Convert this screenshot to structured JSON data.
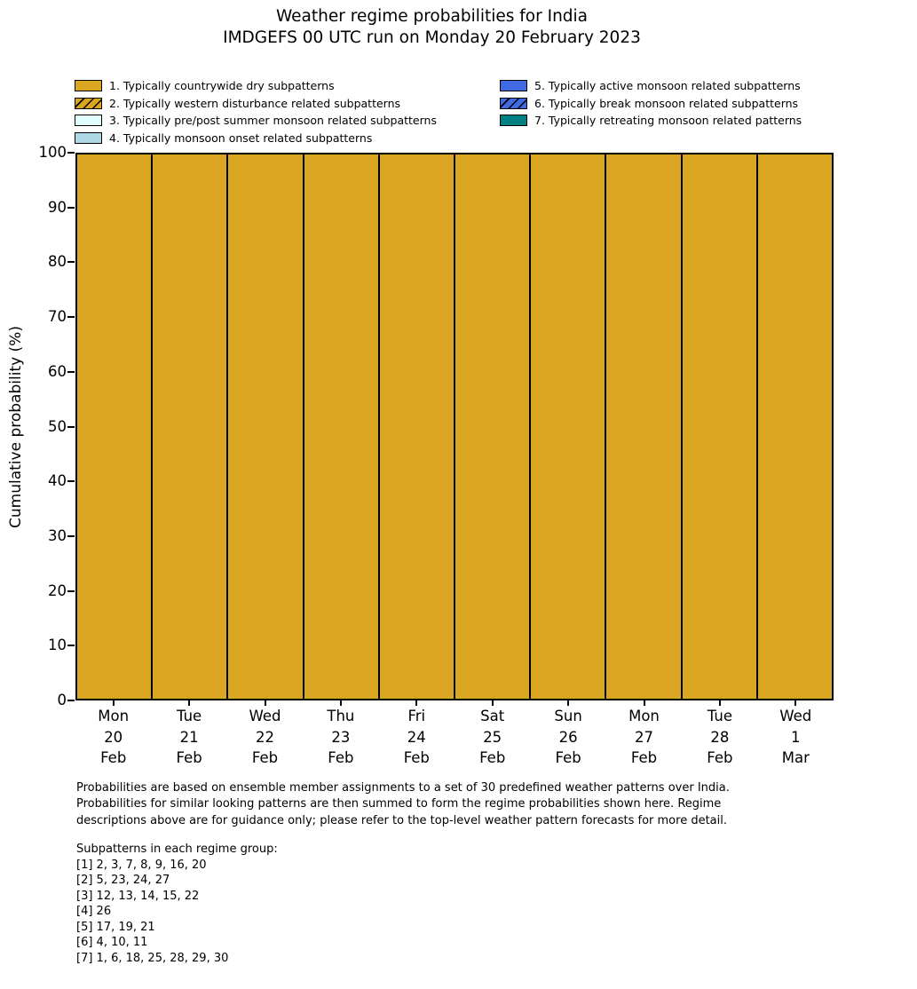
{
  "title": {
    "line1": "Weather regime probabilities for India",
    "line2": "IMDGEFS 00 UTC run on Monday 20 February 2023"
  },
  "ylabel": "Cumulative probability (%)",
  "colors": {
    "regime_dry": "#daa520",
    "regime_western_disturbance": "#daa520",
    "regime_prepost_monsoon": "#e0ffff",
    "regime_monsoon_onset": "#add8e6",
    "regime_active_monsoon": "#4169e1",
    "regime_break_monsoon": "#4169e1",
    "regime_retreating_monsoon": "#008080",
    "bar_edge": "#000000",
    "text": "#000000",
    "background": "#ffffff"
  },
  "legend": {
    "left_column": [
      {
        "label": "1. Typically countrywide dry subpatterns",
        "color": "#daa520",
        "hatch": false
      },
      {
        "label": "2. Typically western disturbance related subpatterns",
        "color": "#daa520",
        "hatch": true
      },
      {
        "label": "3. Typically pre/post summer monsoon related subpatterns",
        "color": "#e0ffff",
        "hatch": false
      },
      {
        "label": "4. Typically monsoon onset related subpatterns",
        "color": "#add8e6",
        "hatch": false
      }
    ],
    "right_column": [
      {
        "label": "5. Typically active monsoon related subpatterns",
        "color": "#4169e1",
        "hatch": false
      },
      {
        "label": "6. Typically break monsoon related subpatterns",
        "color": "#4169e1",
        "hatch": true
      },
      {
        "label": "7. Typically retreating monsoon related patterns",
        "color": "#008080",
        "hatch": false
      }
    ]
  },
  "regime_colors": [
    "#daa520",
    "#daa520",
    "#e0ffff",
    "#add8e6",
    "#4169e1",
    "#4169e1",
    "#008080"
  ],
  "regime_hatch": [
    false,
    true,
    false,
    false,
    false,
    true,
    false
  ],
  "xticks": [
    {
      "day": "Mon",
      "date": "20",
      "month": "Feb"
    },
    {
      "day": "Tue",
      "date": "21",
      "month": "Feb"
    },
    {
      "day": "Wed",
      "date": "22",
      "month": "Feb"
    },
    {
      "day": "Thu",
      "date": "23",
      "month": "Feb"
    },
    {
      "day": "Fri",
      "date": "24",
      "month": "Feb"
    },
    {
      "day": "Sat",
      "date": "25",
      "month": "Feb"
    },
    {
      "day": "Sun",
      "date": "26",
      "month": "Feb"
    },
    {
      "day": "Mon",
      "date": "27",
      "month": "Feb"
    },
    {
      "day": "Tue",
      "date": "28",
      "month": "Feb"
    },
    {
      "day": "Wed",
      "date": "1",
      "month": "Mar"
    }
  ],
  "footer_lines": [
    "Probabilities are based on ensemble member assignments to a set of 30 predefined weather patterns over India.",
    "Probabilities for similar looking patterns are then summed to form the regime probabilities shown here. Regime",
    "descriptions above are for guidance only; please refer to the top-level weather pattern forecasts for more detail."
  ],
  "subpatterns": {
    "heading": "Subpatterns in each regime group:",
    "lines": [
      "[1] 2, 3, 7, 8, 9, 16, 20",
      "[2] 5, 23, 24, 27",
      "[3] 12, 13, 14, 15, 22",
      "[4] 26",
      "[5] 17, 19, 21",
      "[6] 4, 10, 11",
      "[7] 1, 6, 18, 25, 28, 29, 30"
    ]
  },
  "chart_data": {
    "type": "bar",
    "stacked": true,
    "title": "Weather regime probabilities for India",
    "subtitle": "IMDGEFS 00 UTC run on Monday 20 February 2023",
    "xlabel": "",
    "ylabel": "Cumulative probability (%)",
    "ylim": [
      0,
      100
    ],
    "yticks": [
      0,
      10,
      20,
      30,
      40,
      50,
      60,
      70,
      80,
      90,
      100
    ],
    "grid": false,
    "legend_position": "top",
    "categories": [
      "Mon 20 Feb",
      "Tue 21 Feb",
      "Wed 22 Feb",
      "Thu 23 Feb",
      "Fri 24 Feb",
      "Sat 25 Feb",
      "Sun 26 Feb",
      "Mon 27 Feb",
      "Tue 28 Feb",
      "Wed 1 Mar"
    ],
    "series": [
      {
        "name": "1. Typically countrywide dry subpatterns",
        "values": [
          100,
          100,
          100,
          100,
          100,
          100,
          100,
          100,
          100,
          100
        ]
      },
      {
        "name": "2. Typically western disturbance related subpatterns",
        "values": [
          0,
          0,
          0,
          0,
          0,
          0,
          0,
          0,
          0,
          0
        ]
      },
      {
        "name": "3. Typically pre/post summer monsoon related subpatterns",
        "values": [
          0,
          0,
          0,
          0,
          0,
          0,
          0,
          0,
          0,
          0
        ]
      },
      {
        "name": "4. Typically monsoon onset related subpatterns",
        "values": [
          0,
          0,
          0,
          0,
          0,
          0,
          0,
          0,
          0,
          0
        ]
      },
      {
        "name": "5. Typically active monsoon related subpatterns",
        "values": [
          0,
          0,
          0,
          0,
          0,
          0,
          0,
          0,
          0,
          0
        ]
      },
      {
        "name": "6. Typically break monsoon related subpatterns",
        "values": [
          0,
          0,
          0,
          0,
          0,
          0,
          0,
          0,
          0,
          0
        ]
      },
      {
        "name": "7. Typically retreating monsoon related patterns",
        "values": [
          0,
          0,
          0,
          0,
          0,
          0,
          0,
          0,
          0,
          0
        ]
      }
    ]
  }
}
